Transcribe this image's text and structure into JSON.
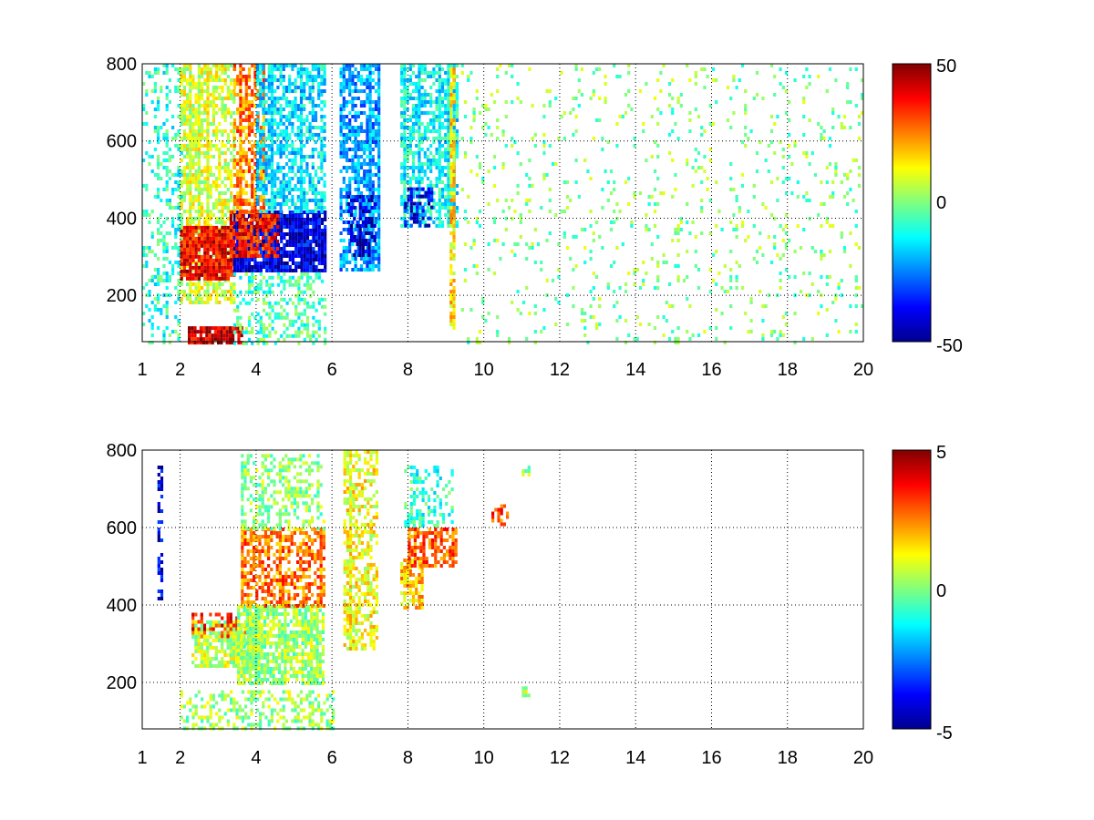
{
  "chart_data": [
    {
      "type": "heatmap",
      "title": "",
      "xlabel": "",
      "ylabel": "",
      "xlim": [
        1,
        20
      ],
      "ylim": [
        80,
        800
      ],
      "x_ticks": [
        "1",
        "2",
        "4",
        "6",
        "8",
        "10",
        "12",
        "14",
        "16",
        "18",
        "20"
      ],
      "y_ticks": [
        "200",
        "400",
        "600",
        "800"
      ],
      "grid": true,
      "colormap": "jet",
      "colorbar": {
        "range": [
          -50,
          50
        ],
        "ticks": [
          "50",
          "0",
          "-50"
        ]
      },
      "regions": [
        {
          "x": [
            1.0,
            2.0
          ],
          "y": [
            80,
            800
          ],
          "value": -8,
          "density": 0.25
        },
        {
          "x": [
            2.0,
            3.4
          ],
          "y": [
            180,
            800
          ],
          "value": 8,
          "density": 0.6
        },
        {
          "x": [
            2.0,
            3.4
          ],
          "y": [
            240,
            380
          ],
          "value": 38,
          "density": 0.9
        },
        {
          "x": [
            2.2,
            3.6
          ],
          "y": [
            80,
            120
          ],
          "value": 42,
          "density": 0.9
        },
        {
          "x": [
            3.4,
            5.8
          ],
          "y": [
            260,
            420
          ],
          "value": -40,
          "density": 0.9
        },
        {
          "x": [
            3.3,
            4.6
          ],
          "y": [
            300,
            420
          ],
          "value": 35,
          "density": 0.6
        },
        {
          "x": [
            3.4,
            4.2
          ],
          "y": [
            420,
            800
          ],
          "value": 25,
          "density": 0.6
        },
        {
          "x": [
            4.0,
            5.8
          ],
          "y": [
            420,
            800
          ],
          "value": -15,
          "density": 0.6
        },
        {
          "x": [
            3.4,
            5.8
          ],
          "y": [
            80,
            260
          ],
          "value": -5,
          "density": 0.35
        },
        {
          "x": [
            6.2,
            7.2
          ],
          "y": [
            270,
            800
          ],
          "value": -22,
          "density": 0.65
        },
        {
          "x": [
            6.4,
            7.1
          ],
          "y": [
            300,
            460
          ],
          "value": -42,
          "density": 0.5
        },
        {
          "x": [
            7.8,
            9.3
          ],
          "y": [
            380,
            800
          ],
          "value": -12,
          "density": 0.55
        },
        {
          "x": [
            7.9,
            8.6
          ],
          "y": [
            380,
            480
          ],
          "value": -38,
          "density": 0.5
        },
        {
          "x": [
            9.1,
            9.2
          ],
          "y": [
            120,
            800
          ],
          "value": 15,
          "density": 0.8
        },
        {
          "x": [
            9.4,
            20.0
          ],
          "y": [
            80,
            800
          ],
          "value": 0,
          "density": 0.07
        }
      ]
    },
    {
      "type": "heatmap",
      "title": "",
      "xlabel": "",
      "ylabel": "",
      "xlim": [
        1,
        20
      ],
      "ylim": [
        80,
        800
      ],
      "x_ticks": [
        "1",
        "2",
        "4",
        "6",
        "8",
        "10",
        "12",
        "14",
        "16",
        "18",
        "20"
      ],
      "y_ticks": [
        "200",
        "400",
        "600",
        "800"
      ],
      "grid": true,
      "colormap": "jet",
      "colorbar": {
        "range": [
          -5,
          5
        ],
        "ticks": [
          "5",
          "0",
          "-5"
        ]
      },
      "regions": [
        {
          "x": [
            1.4,
            1.5
          ],
          "y": [
            420,
            760
          ],
          "value": -4,
          "density": 0.3
        },
        {
          "x": [
            2.3,
            4.0
          ],
          "y": [
            240,
            360
          ],
          "value": 0.6,
          "density": 0.75
        },
        {
          "x": [
            2.3,
            3.8
          ],
          "y": [
            320,
            380
          ],
          "value": 3.5,
          "density": 0.35
        },
        {
          "x": [
            3.5,
            5.8
          ],
          "y": [
            200,
            400
          ],
          "value": 0.3,
          "density": 0.7
        },
        {
          "x": [
            3.6,
            5.8
          ],
          "y": [
            400,
            600
          ],
          "value": 2.6,
          "density": 0.55
        },
        {
          "x": [
            3.6,
            5.8
          ],
          "y": [
            600,
            790
          ],
          "value": 0.2,
          "density": 0.35
        },
        {
          "x": [
            2.0,
            6.0
          ],
          "y": [
            80,
            180
          ],
          "value": 0.3,
          "density": 0.4
        },
        {
          "x": [
            6.3,
            7.2
          ],
          "y": [
            290,
            800
          ],
          "value": 1.2,
          "density": 0.55
        },
        {
          "x": [
            7.8,
            8.4
          ],
          "y": [
            390,
            520
          ],
          "value": 1.8,
          "density": 0.75
        },
        {
          "x": [
            8.0,
            9.3
          ],
          "y": [
            500,
            600
          ],
          "value": 2.8,
          "density": 0.6
        },
        {
          "x": [
            7.9,
            9.2
          ],
          "y": [
            600,
            760
          ],
          "value": -0.8,
          "density": 0.3
        },
        {
          "x": [
            10.2,
            10.6
          ],
          "y": [
            610,
            660
          ],
          "value": 3,
          "density": 0.5
        },
        {
          "x": [
            11.0,
            11.2
          ],
          "y": [
            740,
            760
          ],
          "value": 0.5,
          "density": 0.5
        },
        {
          "x": [
            11.0,
            11.2
          ],
          "y": [
            170,
            190
          ],
          "value": 0.5,
          "density": 0.5
        }
      ]
    }
  ]
}
